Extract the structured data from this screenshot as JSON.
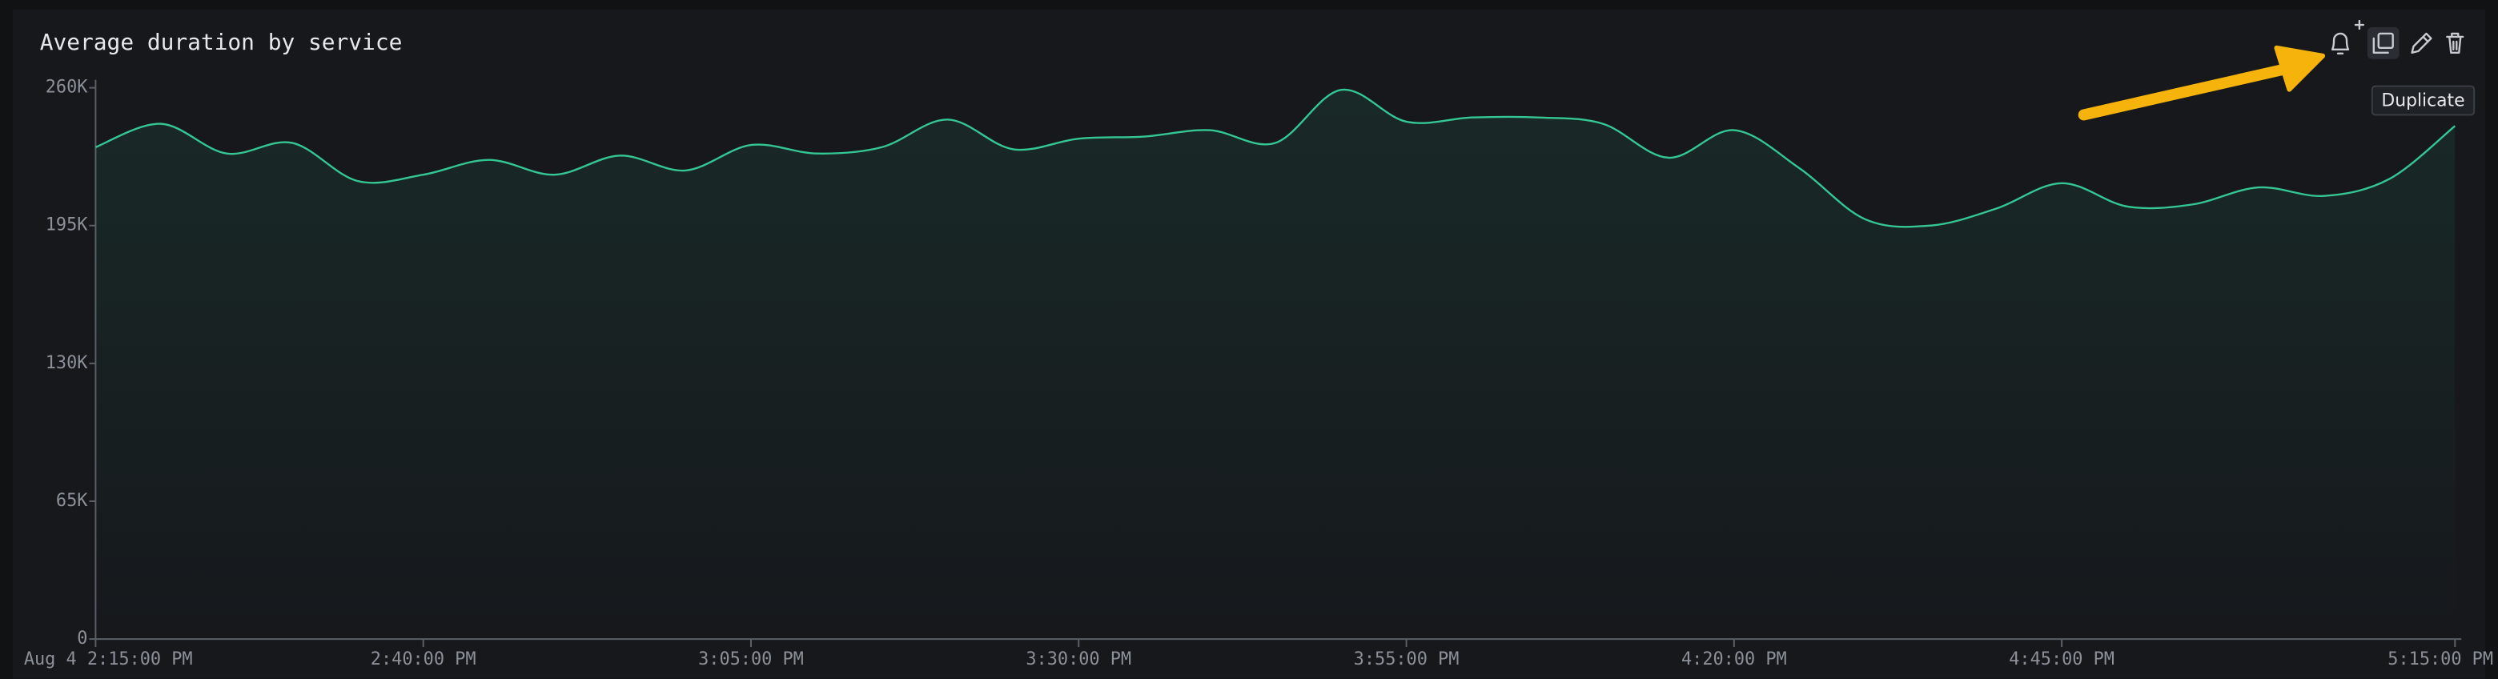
{
  "chart_data": {
    "type": "line",
    "title": "Average duration by service",
    "x": [
      "14:15",
      "14:20",
      "14:25",
      "14:30",
      "14:35",
      "14:40",
      "14:45",
      "14:50",
      "14:55",
      "15:00",
      "15:05",
      "15:10",
      "15:15",
      "15:20",
      "15:25",
      "15:30",
      "15:35",
      "15:40",
      "15:45",
      "15:50",
      "15:55",
      "16:00",
      "16:05",
      "16:10",
      "16:15",
      "16:20",
      "16:25",
      "16:30",
      "16:35",
      "16:40",
      "16:45",
      "16:50",
      "16:55",
      "17:00",
      "17:05",
      "17:10",
      "17:15"
    ],
    "series": [
      {
        "color": "#34c793",
        "values": [
          232000,
          243000,
          229000,
          234000,
          216000,
          219000,
          226000,
          219000,
          228000,
          221000,
          233000,
          229000,
          232000,
          245000,
          231000,
          236000,
          237000,
          240000,
          234000,
          259000,
          244000,
          246000,
          246000,
          243000,
          227000,
          240000,
          222000,
          198000,
          195000,
          203000,
          215000,
          204000,
          205000,
          213000,
          209000,
          217000,
          242000
        ]
      }
    ],
    "xlim": [
      "14:15",
      "17:15"
    ],
    "xticks": [
      {
        "value": "14:15",
        "label": "Aug 4 2:15:00 PM"
      },
      {
        "value": "14:40",
        "label": "2:40:00 PM"
      },
      {
        "value": "15:05",
        "label": "3:05:00 PM"
      },
      {
        "value": "15:30",
        "label": "3:30:00 PM"
      },
      {
        "value": "15:55",
        "label": "3:55:00 PM"
      },
      {
        "value": "16:20",
        "label": "4:20:00 PM"
      },
      {
        "value": "16:45",
        "label": "4:45:00 PM"
      },
      {
        "value": "17:15",
        "label": "5:15:00 PM"
      }
    ],
    "ylim": [
      0,
      260000
    ],
    "yticks": [
      0,
      {
        "value": 65000,
        "label": "65K"
      },
      {
        "value": 130000,
        "label": "130K"
      },
      {
        "value": 195000,
        "label": "195K"
      },
      {
        "value": 260000,
        "label": "260K"
      }
    ],
    "grid": false
  },
  "toolbar": {
    "tooltip": "Duplicate"
  }
}
